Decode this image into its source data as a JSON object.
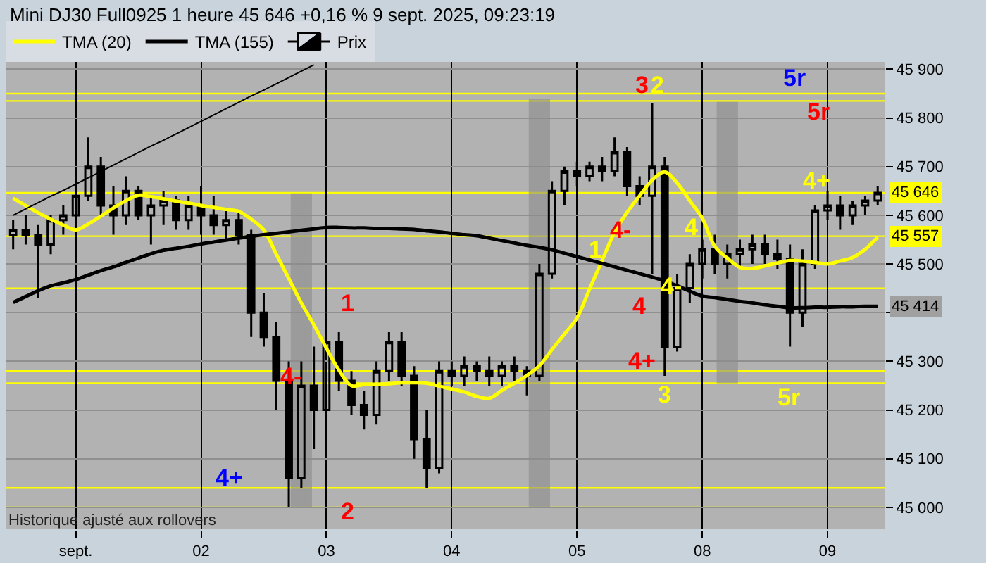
{
  "chart_data": {
    "type": "candlestick",
    "title": "Mini DJ30 Full0925 1 heure 45 646 +0,16 % 9 sept. 2025, 09:23:19",
    "categories": [
      null,
      null,
      null,
      null,
      null,
      "sept.",
      null,
      null,
      null,
      null,
      null,
      null,
      null,
      null,
      null,
      "02",
      null,
      null,
      null,
      null,
      null,
      null,
      null,
      null,
      null,
      "03",
      null,
      null,
      null,
      null,
      null,
      null,
      null,
      null,
      null,
      "04",
      null,
      null,
      null,
      null,
      null,
      null,
      null,
      null,
      null,
      "05",
      null,
      null,
      null,
      null,
      null,
      null,
      null,
      null,
      null,
      "08",
      null,
      null,
      null,
      null,
      null,
      null,
      null,
      null,
      null,
      "09",
      null,
      null,
      null,
      null
    ],
    "ylim": [
      44955,
      45915
    ],
    "yticks": [
      {
        "value": 45000,
        "label": "45 000"
      },
      {
        "value": 45100,
        "label": "45 100"
      },
      {
        "value": 45200,
        "label": "45 200"
      },
      {
        "value": 45300,
        "label": "45 300"
      },
      {
        "value": 45400,
        "label": null
      },
      {
        "value": 45500,
        "label": "45 500"
      },
      {
        "value": 45600,
        "label": "45 600"
      },
      {
        "value": 45700,
        "label": "45 700"
      },
      {
        "value": 45800,
        "label": "45 800"
      },
      {
        "value": 45900,
        "label": "45 900"
      }
    ],
    "grid": true,
    "legend": "top left",
    "series": [
      {
        "type": "bar",
        "color": "#8c8c8c",
        "base": [
          null,
          null,
          null,
          null,
          null,
          null,
          null,
          null,
          null,
          null,
          null,
          null,
          null,
          null,
          null,
          null,
          null,
          null,
          null,
          null,
          null,
          null,
          null,
          45000,
          null,
          null,
          null,
          null,
          null,
          null,
          null,
          null,
          null,
          null,
          null,
          null,
          null,
          null,
          null,
          null,
          null,
          null,
          45000,
          null,
          null,
          null,
          null,
          null,
          null,
          null,
          null,
          null,
          null,
          null,
          null,
          null,
          null,
          45255,
          null,
          null,
          null,
          null,
          null,
          null,
          null,
          null,
          null,
          null,
          null,
          null
        ],
        "values": [
          null,
          null,
          null,
          null,
          null,
          null,
          null,
          null,
          null,
          null,
          null,
          null,
          null,
          null,
          null,
          null,
          null,
          null,
          null,
          null,
          null,
          null,
          null,
          645,
          null,
          null,
          null,
          null,
          null,
          null,
          null,
          null,
          null,
          null,
          null,
          null,
          null,
          null,
          null,
          null,
          null,
          null,
          840,
          null,
          null,
          null,
          null,
          null,
          null,
          null,
          null,
          null,
          null,
          null,
          null,
          null,
          null,
          578,
          null,
          null,
          null,
          null,
          null,
          null,
          null,
          null,
          null,
          null,
          null,
          null
        ]
      },
      {
        "name": "Prix",
        "color": "#000000",
        "ohlc": [
          [
            45560,
            45590,
            45530,
            45570
          ],
          [
            45570,
            45600,
            45540,
            45560
          ],
          [
            45560,
            45580,
            45430,
            45540
          ],
          [
            45540,
            45600,
            45520,
            45590
          ],
          [
            45590,
            45620,
            45560,
            45600
          ],
          [
            45600,
            45650,
            45560,
            45640
          ],
          [
            45640,
            45760,
            45630,
            45700
          ],
          [
            45700,
            45720,
            45600,
            45620
          ],
          [
            45620,
            45660,
            45560,
            45600
          ],
          [
            45600,
            45680,
            45580,
            45650
          ],
          [
            45650,
            45660,
            45590,
            45600
          ],
          [
            45600,
            45640,
            45540,
            45620
          ],
          [
            45620,
            45650,
            45580,
            45630
          ],
          [
            45630,
            45640,
            45570,
            45590
          ],
          [
            45590,
            45640,
            45570,
            45620
          ],
          [
            45620,
            45660,
            45560,
            45600
          ],
          [
            45600,
            45640,
            45560,
            45580
          ],
          [
            45580,
            45610,
            45550,
            45590
          ],
          [
            45590,
            45610,
            45540,
            45560
          ],
          [
            45560,
            45570,
            45350,
            45400
          ],
          [
            45400,
            45440,
            45330,
            45350
          ],
          [
            45350,
            45380,
            45200,
            45260
          ],
          [
            45260,
            45300,
            45000,
            45060
          ],
          [
            45060,
            45300,
            45040,
            45250
          ],
          [
            45250,
            45330,
            45120,
            45200
          ],
          [
            45200,
            45400,
            45180,
            45340
          ],
          [
            45340,
            45360,
            45240,
            45260
          ],
          [
            45260,
            45280,
            45190,
            45210
          ],
          [
            45210,
            45240,
            45160,
            45190
          ],
          [
            45190,
            45300,
            45170,
            45280
          ],
          [
            45280,
            45360,
            45260,
            45340
          ],
          [
            45340,
            45360,
            45250,
            45270
          ],
          [
            45270,
            45290,
            45100,
            45140
          ],
          [
            45140,
            45200,
            45040,
            45080
          ],
          [
            45080,
            45300,
            45070,
            45280
          ],
          [
            45280,
            45300,
            45250,
            45270
          ],
          [
            45270,
            45310,
            45250,
            45290
          ],
          [
            45290,
            45300,
            45260,
            45280
          ],
          [
            45280,
            45310,
            45250,
            45270
          ],
          [
            45270,
            45300,
            45250,
            45290
          ],
          [
            45290,
            45310,
            45260,
            45280
          ],
          [
            45280,
            45290,
            45230,
            45270
          ],
          [
            45270,
            45500,
            45260,
            45480
          ],
          [
            45480,
            45670,
            45470,
            45650
          ],
          [
            45650,
            45700,
            45620,
            45690
          ],
          [
            45690,
            45710,
            45660,
            45680
          ],
          [
            45680,
            45710,
            45670,
            45700
          ],
          [
            45700,
            45720,
            45670,
            45690
          ],
          [
            45690,
            45760,
            45680,
            45730
          ],
          [
            45730,
            45740,
            45640,
            45660
          ],
          [
            45660,
            45680,
            45620,
            45640
          ],
          [
            45640,
            45830,
            45480,
            45700
          ],
          [
            45700,
            45720,
            45270,
            45330
          ],
          [
            45330,
            45480,
            45320,
            45450
          ],
          [
            45450,
            45520,
            45420,
            45500
          ],
          [
            45500,
            45550,
            45470,
            45530
          ],
          [
            45530,
            45560,
            45480,
            45500
          ],
          [
            45500,
            45540,
            45470,
            45520
          ],
          [
            45520,
            45550,
            45490,
            45530
          ],
          [
            45530,
            45560,
            45500,
            45540
          ],
          [
            45540,
            45560,
            45500,
            45520
          ],
          [
            45520,
            45550,
            45490,
            45510
          ],
          [
            45510,
            45540,
            45330,
            45400
          ],
          [
            45400,
            45530,
            45370,
            45500
          ],
          [
            45500,
            45620,
            45490,
            45610
          ],
          [
            45610,
            45650,
            45590,
            45620
          ],
          [
            45620,
            45640,
            45570,
            45600
          ],
          [
            45600,
            45630,
            45580,
            45620
          ],
          [
            45620,
            45640,
            45600,
            45630
          ],
          [
            45630,
            45660,
            45620,
            45646
          ]
        ]
      },
      {
        "name": "TMA (20)",
        "type": "line",
        "color": "#ffff00",
        "values": [
          45635,
          45620,
          45605,
          45592,
          45580,
          45570,
          45582,
          45598,
          45615,
          45630,
          45641,
          45638,
          45634,
          45629,
          45625,
          45620,
          45616,
          45612,
          45608,
          45592,
          45570,
          45520,
          45470,
          45420,
          45375,
          45327,
          45282,
          45250,
          45252,
          45253,
          45254,
          45256,
          45256,
          45255,
          45249,
          45243,
          45237,
          45228,
          45224,
          45240,
          45255,
          45271,
          45291,
          45324,
          45356,
          45389,
          45448,
          45507,
          45565,
          45606,
          45640,
          45672,
          45689,
          45666,
          45630,
          45594,
          45536,
          45512,
          45493,
          45491,
          45496,
          45502,
          45507,
          45506,
          45503,
          45500,
          45506,
          45513,
          45530,
          45555
        ]
      },
      {
        "name": "TMA (155)",
        "type": "line",
        "color": "#000000",
        "values": [
          45421,
          45433,
          45445,
          45455,
          45461,
          45468,
          45477,
          45486,
          45494,
          45503,
          45512,
          45521,
          45528,
          45532,
          45536,
          45541,
          45545,
          45549,
          45553,
          45557,
          45560,
          45563,
          45566,
          45569,
          45572,
          45575,
          45575,
          45574,
          45574,
          45573,
          45573,
          45572,
          45571,
          45568,
          45566,
          45563,
          45560,
          45558,
          45553,
          45548,
          45543,
          45538,
          45534,
          45529,
          45522,
          45515,
          45508,
          45501,
          45494,
          45487,
          45480,
          45473,
          45465,
          45455,
          45444,
          45434,
          45431,
          45427,
          45423,
          45420,
          45416,
          45413,
          45410,
          45410,
          45411,
          45411,
          45412,
          45412,
          45413,
          45413
        ]
      },
      {
        "type": "line",
        "color": "#000000",
        "values": [
          45600,
          45613,
          45626,
          45639,
          45651,
          45664,
          45677,
          45690,
          45703,
          45716,
          45729,
          45742,
          45754,
          45767,
          45780,
          45793,
          45806,
          45819,
          45832,
          45845,
          45857,
          45870,
          45883,
          45896,
          45909,
          null,
          null,
          null,
          null,
          null,
          null,
          null,
          null,
          null,
          null,
          null,
          null,
          null,
          null,
          null,
          null,
          null,
          null,
          null,
          null,
          null,
          null,
          null,
          null,
          null,
          null,
          null,
          null,
          null,
          null,
          null,
          null,
          null,
          null,
          null,
          null,
          null,
          null,
          null,
          null,
          null,
          null,
          null,
          null,
          null
        ]
      }
    ],
    "ref_lines": [
      {
        "axis": "y",
        "value": 45850,
        "color": "#ffff00"
      },
      {
        "axis": "y",
        "value": 45835,
        "color": "#ffff00"
      },
      {
        "axis": "y",
        "value": 45646,
        "color": "#ffff00",
        "label": "45 646"
      },
      {
        "axis": "y",
        "value": 45557,
        "color": "#ffff00",
        "label": "45 557"
      },
      {
        "axis": "y",
        "value": 45450,
        "color": "#ffff00"
      },
      {
        "axis": "y",
        "value": 45280,
        "color": "#ffff00"
      },
      {
        "axis": "y",
        "value": 45255,
        "color": "#ffff00"
      },
      {
        "axis": "y",
        "value": 45040,
        "color": "#ffff00"
      },
      {
        "axis": "y",
        "value": 45000,
        "color": "#ffff00"
      }
    ],
    "annotations": [
      "1",
      "2",
      "4-",
      "4+",
      "3",
      "2",
      "4-",
      "1",
      "4",
      "4-",
      "4",
      "4+",
      "3",
      "5r",
      "5r",
      "4+",
      "5r",
      "45 414",
      "Historique ajusté aux rollovers"
    ]
  }
}
